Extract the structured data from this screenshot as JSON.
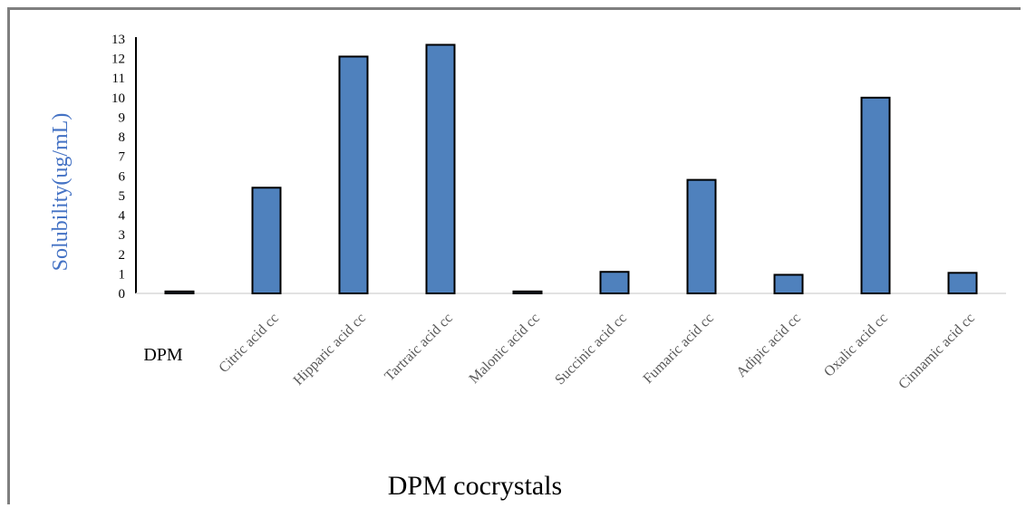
{
  "chart_data": {
    "type": "bar",
    "title": "",
    "xlabel": "DPM cocrystals",
    "ylabel": "Solubility(ug/mL)",
    "ylim": [
      0,
      13
    ],
    "yticks": [
      0,
      1,
      2,
      3,
      4,
      5,
      6,
      7,
      8,
      9,
      10,
      11,
      12,
      13
    ],
    "grid": false,
    "bar_color": "#4f81bd",
    "ylabel_color": "#4472c4",
    "categories": [
      "DPM",
      "Citric acid cc",
      "Hipparic acid cc",
      "Tartraic acid cc",
      "Malonic acid cc",
      "Succinic acid cc",
      "Fumaric acid cc",
      "Adipic acid cc",
      "Oxalic acid cc",
      "Cinnamic acid cc"
    ],
    "values": [
      0.1,
      5.4,
      12.1,
      12.7,
      0.1,
      1.1,
      5.8,
      0.95,
      10.0,
      1.05
    ]
  }
}
